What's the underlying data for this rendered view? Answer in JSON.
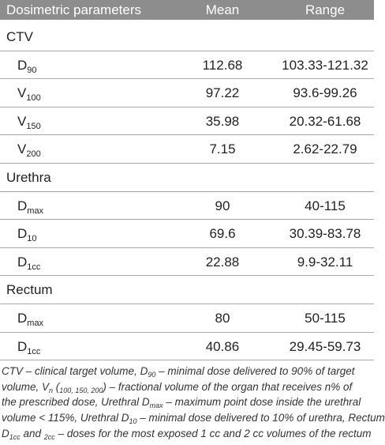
{
  "table": {
    "header": [
      "Dosimetric parameters",
      "Mean",
      "Range"
    ],
    "sections": [
      {
        "label": "CTV",
        "rows": [
          {
            "symbol": "D",
            "sub": "90",
            "mean": "112.68",
            "range": "103.33-121.32"
          },
          {
            "symbol": "V",
            "sub": "100",
            "mean": "97.22",
            "range": "93.6-99.26"
          },
          {
            "symbol": "V",
            "sub": "150",
            "mean": "35.98",
            "range": "20.32-61.68"
          },
          {
            "symbol": "V",
            "sub": "200",
            "mean": "7.15",
            "range": "2.62-22.79"
          }
        ]
      },
      {
        "label": "Urethra",
        "rows": [
          {
            "symbol": "D",
            "sub": "max",
            "mean": "90",
            "range": "40-115"
          },
          {
            "symbol": "D",
            "sub": "10",
            "mean": "69.6",
            "range": "30.39-83.78"
          },
          {
            "symbol": "D",
            "sub": "1cc",
            "mean": "22.88",
            "range": "9.9-32.11"
          }
        ]
      },
      {
        "label": "Rectum",
        "rows": [
          {
            "symbol": "D",
            "sub": "max",
            "mean": "80",
            "range": "50-115"
          },
          {
            "symbol": "D",
            "sub": "1cc",
            "mean": "40.86",
            "range": "29.45-59.73"
          }
        ]
      }
    ]
  },
  "footnote": [
    [
      {
        "t": "CTV – clinical target volume, D"
      },
      {
        "sub": "90"
      },
      {
        "t": " – minimal dose delivered to 90% of target"
      }
    ],
    [
      {
        "t": "volume, V"
      },
      {
        "sub": "n"
      },
      {
        "t": " ("
      },
      {
        "sub": "100, 150, 200"
      },
      {
        "t": ") – fractional volume of the organ that receives n% of"
      }
    ],
    [
      {
        "t": "the prescribed dose, Urethral D"
      },
      {
        "sub": "max"
      },
      {
        "t": " – maximum point dose inside the urethral"
      }
    ],
    [
      {
        "t": "volume < 115%, Urethral D"
      },
      {
        "sub": "10"
      },
      {
        "t": " – minimal dose delivered to 10% of urethra, Rectum"
      }
    ],
    [
      {
        "t": "D"
      },
      {
        "sub": "1cc"
      },
      {
        "t": " and "
      },
      {
        "sub": "2cc"
      },
      {
        "t": " – doses for the most exposed 1 cc and 2 cc volumes of the rectum"
      }
    ]
  ]
}
